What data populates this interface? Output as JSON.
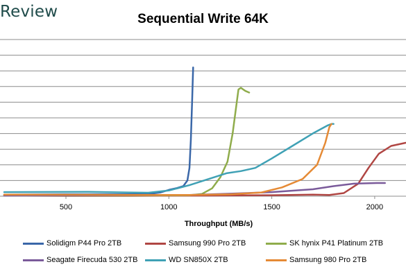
{
  "logo_text": "Review",
  "chart_data": {
    "type": "line",
    "title": "Sequential Write 64K",
    "xlabel": "Throughput (MB/s)",
    "ylabel": "",
    "xlim": [
      200,
      2150
    ],
    "x_ticks": [
      500,
      1000,
      1500,
      2000
    ],
    "grid": "horizontal",
    "legend_position": "bottom",
    "series": [
      {
        "name": "Solidigm P44 Pro 2TB",
        "color": "#3a67a8",
        "points": [
          [
            200,
            0.05
          ],
          [
            500,
            0.06
          ],
          [
            800,
            0.06
          ],
          [
            900,
            0.07
          ],
          [
            960,
            0.12
          ],
          [
            1000,
            0.2
          ],
          [
            1040,
            0.26
          ],
          [
            1070,
            0.32
          ],
          [
            1090,
            0.5
          ],
          [
            1100,
            0.9
          ],
          [
            1107,
            1.8
          ],
          [
            1113,
            3.0
          ],
          [
            1118,
            4.1
          ]
        ]
      },
      {
        "name": "Samsung 990 Pro 2TB",
        "color": "#b04643",
        "points": [
          [
            200,
            0.02
          ],
          [
            500,
            0.01
          ],
          [
            800,
            0.01
          ],
          [
            1100,
            0.02
          ],
          [
            1500,
            0.03
          ],
          [
            1700,
            0.05
          ],
          [
            1780,
            0.04
          ],
          [
            1850,
            0.1
          ],
          [
            1920,
            0.4
          ],
          [
            1970,
            0.9
          ],
          [
            2020,
            1.35
          ],
          [
            2080,
            1.6
          ],
          [
            2150,
            1.7
          ]
        ]
      },
      {
        "name": "SK hynix P41 Platinum 2TB",
        "color": "#8fac4b",
        "points": [
          [
            200,
            0.02
          ],
          [
            800,
            0.02
          ],
          [
            1100,
            0.03
          ],
          [
            1160,
            0.07
          ],
          [
            1210,
            0.25
          ],
          [
            1250,
            0.6
          ],
          [
            1285,
            1.1
          ],
          [
            1310,
            2.0
          ],
          [
            1330,
            3.0
          ],
          [
            1338,
            3.4
          ],
          [
            1350,
            3.45
          ],
          [
            1372,
            3.35
          ],
          [
            1390,
            3.3
          ]
        ]
      },
      {
        "name": "Seagate Firecuda 530 2TB",
        "color": "#7a5a9a",
        "points": [
          [
            200,
            0.02
          ],
          [
            800,
            0.03
          ],
          [
            1100,
            0.04
          ],
          [
            1300,
            0.08
          ],
          [
            1500,
            0.13
          ],
          [
            1700,
            0.22
          ],
          [
            1800,
            0.32
          ],
          [
            1900,
            0.4
          ],
          [
            2010,
            0.42
          ],
          [
            2050,
            0.42
          ]
        ]
      },
      {
        "name": "WD SN850X 2TB",
        "color": "#3fa1b5",
        "points": [
          [
            200,
            0.13
          ],
          [
            600,
            0.14
          ],
          [
            800,
            0.12
          ],
          [
            900,
            0.11
          ],
          [
            1000,
            0.18
          ],
          [
            1100,
            0.35
          ],
          [
            1200,
            0.56
          ],
          [
            1280,
            0.73
          ],
          [
            1350,
            0.8
          ],
          [
            1420,
            0.9
          ],
          [
            1500,
            1.2
          ],
          [
            1600,
            1.6
          ],
          [
            1700,
            2.0
          ],
          [
            1770,
            2.25
          ],
          [
            1790,
            2.3
          ],
          [
            1800,
            2.3
          ]
        ]
      },
      {
        "name": "Samsung 980 Pro 2TB",
        "color": "#e58a35",
        "points": [
          [
            200,
            0.05
          ],
          [
            800,
            0.04
          ],
          [
            1100,
            0.04
          ],
          [
            1300,
            0.06
          ],
          [
            1450,
            0.12
          ],
          [
            1550,
            0.28
          ],
          [
            1650,
            0.55
          ],
          [
            1720,
            1.0
          ],
          [
            1760,
            1.7
          ],
          [
            1780,
            2.2
          ],
          [
            1790,
            2.3
          ]
        ]
      }
    ]
  }
}
